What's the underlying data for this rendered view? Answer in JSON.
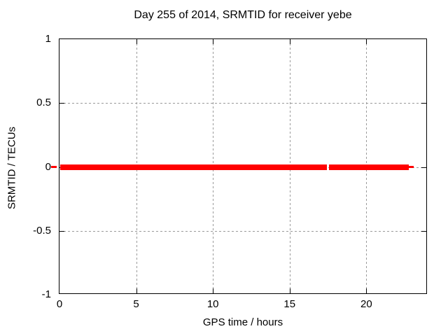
{
  "chart_data": {
    "type": "line",
    "title": "Day 255 of 2014, SRMTID for receiver yebe",
    "xlabel": "GPS time / hours",
    "ylabel": "SRMTID / TECUs",
    "xlim": [
      0,
      24
    ],
    "ylim": [
      -1,
      1
    ],
    "grid": true,
    "legend": "none",
    "xticks": [
      {
        "value": 0,
        "label": "0"
      },
      {
        "value": 5,
        "label": "5"
      },
      {
        "value": 10,
        "label": "10"
      },
      {
        "value": 15,
        "label": "15"
      },
      {
        "value": 20,
        "label": "20"
      }
    ],
    "yticks": [
      {
        "value": 1,
        "label": "1"
      },
      {
        "value": 0.5,
        "label": "0.5"
      },
      {
        "value": 0,
        "label": "0"
      },
      {
        "value": -0.5,
        "label": "-0.5"
      },
      {
        "value": -1,
        "label": "-1"
      }
    ],
    "series": [
      {
        "name": "SRMTID",
        "color": "#ff0000",
        "description": "Thick flat line at y = 0 spanning most of the day, with a small data gap near 17.5 h",
        "segments": [
          {
            "x_start": 0.05,
            "x_end": 17.45,
            "y": 0
          },
          {
            "x_start": 17.55,
            "x_end": 22.77,
            "y": 0
          }
        ],
        "thin_marks": [
          {
            "x_start": -0.55,
            "x_end": -0.2,
            "y": 0
          },
          {
            "x_start": 22.77,
            "x_end": 23.08,
            "y": 0
          }
        ]
      }
    ],
    "style": {
      "background_color": "#ffffff",
      "border_color": "#000000",
      "grid_color": "#9a9a9a"
    }
  }
}
